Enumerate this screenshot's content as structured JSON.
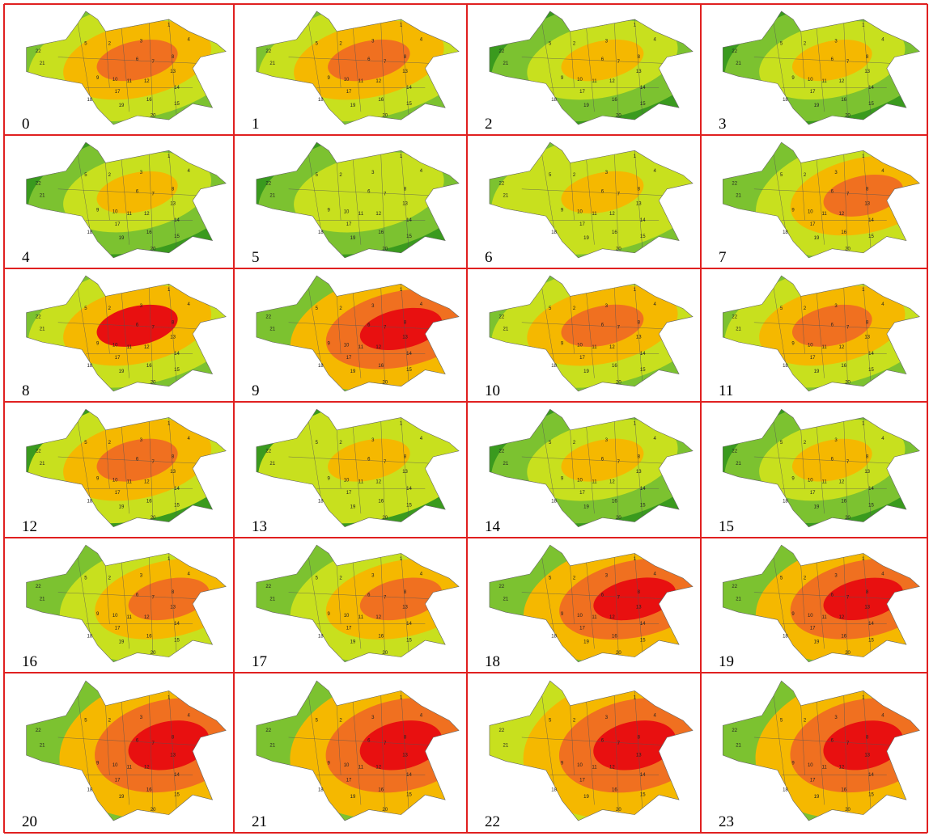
{
  "panels": [
    {
      "label": "0",
      "colors": [
        "#7cc230",
        "#c8e01e",
        "#f5b800",
        "#f07020"
      ]
    },
    {
      "label": "1",
      "colors": [
        "#7cc230",
        "#c8e01e",
        "#f5b800",
        "#f07020"
      ]
    },
    {
      "label": "2",
      "colors": [
        "#3a9a1e",
        "#7cc230",
        "#c8e01e",
        "#f5b800"
      ]
    },
    {
      "label": "3",
      "colors": [
        "#3a9a1e",
        "#7cc230",
        "#c8e01e",
        "#f5b800"
      ]
    },
    {
      "label": "4",
      "colors": [
        "#3a9a1e",
        "#7cc230",
        "#c8e01e",
        "#f5b800"
      ]
    },
    {
      "label": "5",
      "colors": [
        "#3a9a1e",
        "#7cc230",
        "#c8e01e",
        "#c8e01e"
      ]
    },
    {
      "label": "6",
      "colors": [
        "#7cc230",
        "#c8e01e",
        "#c8e01e",
        "#f5b800"
      ]
    },
    {
      "label": "7",
      "colors": [
        "#7cc230",
        "#c8e01e",
        "#f5b800",
        "#f07020"
      ]
    },
    {
      "label": "8",
      "colors": [
        "#7cc230",
        "#c8e01e",
        "#f5b800",
        "#e81010"
      ]
    },
    {
      "label": "9",
      "colors": [
        "#7cc230",
        "#f5b800",
        "#f07020",
        "#e81010"
      ]
    },
    {
      "label": "10",
      "colors": [
        "#7cc230",
        "#c8e01e",
        "#f5b800",
        "#f07020"
      ]
    },
    {
      "label": "11",
      "colors": [
        "#7cc230",
        "#c8e01e",
        "#f5b800",
        "#f07020"
      ]
    },
    {
      "label": "12",
      "colors": [
        "#3a9a1e",
        "#c8e01e",
        "#f5b800",
        "#f07020"
      ]
    },
    {
      "label": "13",
      "colors": [
        "#3a9a1e",
        "#c8e01e",
        "#c8e01e",
        "#f5b800"
      ]
    },
    {
      "label": "14",
      "colors": [
        "#3a9a1e",
        "#7cc230",
        "#c8e01e",
        "#f5b800"
      ]
    },
    {
      "label": "15",
      "colors": [
        "#3a9a1e",
        "#7cc230",
        "#c8e01e",
        "#f5b800"
      ]
    },
    {
      "label": "16",
      "colors": [
        "#7cc230",
        "#c8e01e",
        "#f5b800",
        "#f07020"
      ]
    },
    {
      "label": "17",
      "colors": [
        "#7cc230",
        "#c8e01e",
        "#f5b800",
        "#f07020"
      ]
    },
    {
      "label": "18",
      "colors": [
        "#7cc230",
        "#f5b800",
        "#f07020",
        "#e81010"
      ]
    },
    {
      "label": "19",
      "colors": [
        "#7cc230",
        "#f5b800",
        "#f07020",
        "#e81010"
      ]
    },
    {
      "label": "20",
      "colors": [
        "#7cc230",
        "#f5b800",
        "#f07020",
        "#e81010"
      ]
    },
    {
      "label": "21",
      "colors": [
        "#7cc230",
        "#f5b800",
        "#f07020",
        "#e81010"
      ]
    },
    {
      "label": "22",
      "colors": [
        "#c8e01e",
        "#f5b800",
        "#f07020",
        "#e81010"
      ]
    },
    {
      "label": "23",
      "colors": [
        "#7cc230",
        "#f5b800",
        "#f07020",
        "#e81010"
      ]
    }
  ],
  "districts": [
    "1",
    "2",
    "3",
    "4",
    "5",
    "6",
    "7",
    "8",
    "9",
    "10",
    "11",
    "12",
    "13",
    "14",
    "15",
    "16",
    "17",
    "18",
    "19",
    "20",
    "21",
    "22"
  ]
}
